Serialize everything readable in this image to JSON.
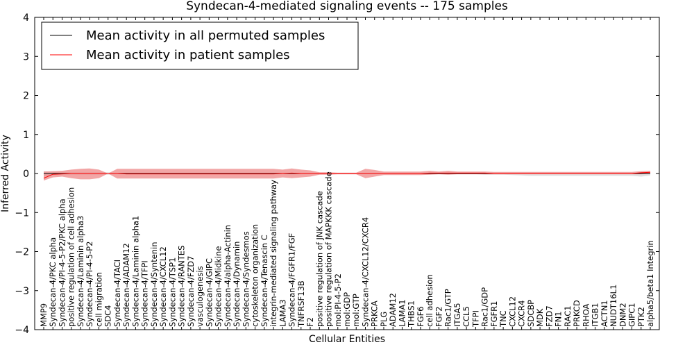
{
  "chart_data": {
    "type": "line",
    "title": "Syndecan-4-mediated signaling events -- 175 samples",
    "xlabel": "Cellular Entities",
    "ylabel": "Inferred Activity",
    "ylim": [
      -4,
      4
    ],
    "yticks": [
      -4,
      -3,
      -2,
      -1,
      0,
      1,
      2,
      3,
      4
    ],
    "ytick_labels": [
      "−4",
      "−3",
      "−2",
      "−1",
      "0",
      "1",
      "2",
      "3",
      "4"
    ],
    "legend_position": "top-left",
    "categories": [
      "MMP9",
      "Syndecan-4/PKC alpha",
      "Syndecan-4/PI-4-5-P2/PKC alpha",
      "positive regulation of cell adhesion",
      "Syndecan-4/Laminin alpha3",
      "Syndecan-4/PI-4-5-P2",
      "cell migration",
      "SDC4",
      "Syndecan-4/TACI",
      "Syndecan-4/ADAM12",
      "Syndecan-4/Laminin alpha1",
      "Syndecan-4/TFPI",
      "Syndecan-4/Syntenin",
      "Syndecan-4/CXCL12",
      "Syndecan-4/TSP1",
      "Syndecan-4/RANTES",
      "Syndecan-4/FZD7",
      "vasculogenesis",
      "Syndecan-4/GIPC",
      "Syndecan-4/Midkine",
      "Syndecan-4/alpha-Actinin",
      "Syndecan-4/Dynamin",
      "Syndecan-4/Syndesmos",
      "cytoskeleton organization",
      "Syndecan-4/Tenascin C",
      "integrin-mediated signaling pathway",
      "LAMA3",
      "Syndecan-4/FGFR1/FGF",
      "TNFRSF13B",
      "F2",
      "positive regulation of JNK cascade",
      "positive regulation of MAPKKK cascade",
      "mol:PI-4-5-P2",
      "mol:GDP",
      "mol:GTP",
      "Syndecan-4/CXCL12/CXCR4",
      "PRKCA",
      "PLG",
      "ADAM12",
      "LAMA1",
      "THBS1",
      "FGF6",
      "cell adhesion",
      "FGF2",
      "Rac1/GTP",
      "ITGA5",
      "CCL5",
      "TFPI",
      "Rac1/GDP",
      "FGFR1",
      "TNC",
      "CXCL12",
      "CXCR4",
      "SDCBP",
      "MDK",
      "FZD7",
      "FN1",
      "RAC1",
      "PRKCD",
      "RHOA",
      "ITGB1",
      "ACTN1",
      "NUDT16L1",
      "DNM2",
      "GIPC1",
      "PTK2",
      "alpha5/beta1 Integrin"
    ],
    "series": [
      {
        "name": "Mean activity in all permuted samples",
        "color": "#000000",
        "values": [
          0,
          0,
          0,
          0,
          0,
          0,
          0,
          0,
          0,
          0,
          0,
          0,
          0,
          0,
          0,
          0,
          0,
          0,
          0,
          0,
          0,
          0,
          0,
          0,
          0,
          0,
          0,
          0,
          0,
          0,
          0,
          0,
          0,
          0,
          0,
          0,
          0,
          0,
          0,
          0,
          0,
          0,
          0,
          0,
          0,
          0,
          0,
          0,
          0,
          0,
          0,
          0,
          0,
          0,
          0,
          0,
          0,
          0,
          0,
          0,
          0,
          0,
          0,
          0,
          0,
          0,
          0
        ],
        "band_lower": [
          -0.08,
          -0.05,
          -0.03,
          -0.03,
          -0.03,
          -0.03,
          -0.03,
          -0.03,
          -0.02,
          -0.02,
          -0.02,
          -0.02,
          -0.02,
          -0.02,
          -0.02,
          -0.02,
          -0.02,
          -0.02,
          -0.02,
          -0.02,
          -0.02,
          -0.02,
          -0.02,
          -0.02,
          -0.02,
          -0.02,
          -0.02,
          -0.02,
          -0.02,
          -0.02,
          -0.02,
          -0.02,
          -0.02,
          -0.02,
          -0.02,
          -0.02,
          -0.02,
          -0.02,
          -0.02,
          -0.02,
          -0.02,
          -0.02,
          -0.02,
          -0.02,
          -0.02,
          -0.02,
          -0.02,
          -0.02,
          -0.03,
          -0.03,
          -0.03,
          -0.04,
          -0.05,
          -0.06,
          -0.06,
          -0.06,
          -0.06,
          -0.06,
          -0.06,
          -0.06,
          -0.06,
          -0.06,
          -0.06,
          -0.06,
          -0.06,
          -0.08,
          -0.05
        ],
        "band_upper": [
          0.06,
          0.04,
          0.03,
          0.03,
          0.03,
          0.03,
          0.03,
          0.03,
          0.02,
          0.02,
          0.02,
          0.02,
          0.02,
          0.02,
          0.02,
          0.02,
          0.02,
          0.02,
          0.02,
          0.02,
          0.02,
          0.02,
          0.02,
          0.02,
          0.02,
          0.02,
          0.02,
          0.02,
          0.02,
          0.02,
          0.02,
          0.02,
          0.02,
          0.02,
          0.02,
          0.02,
          0.02,
          0.02,
          0.02,
          0.02,
          0.02,
          0.02,
          0.02,
          0.02,
          0.02,
          0.02,
          0.02,
          0.02,
          0.02,
          0.02,
          0.02,
          0.02,
          0.02,
          0.02,
          0.02,
          0.02,
          0.02,
          0.02,
          0.02,
          0.02,
          0.02,
          0.02,
          0.02,
          0.02,
          0.02,
          0.03,
          0.03
        ],
        "band_color": "#cccccc"
      },
      {
        "name": "Mean activity in patient samples",
        "color": "#ff0000",
        "values": [
          -0.12,
          -0.02,
          -0.01,
          0,
          0,
          0,
          0,
          0,
          0,
          -0.01,
          -0.01,
          -0.01,
          -0.01,
          -0.01,
          -0.01,
          -0.01,
          -0.01,
          -0.01,
          -0.01,
          -0.01,
          -0.01,
          -0.01,
          -0.01,
          -0.01,
          -0.01,
          -0.01,
          0,
          0.01,
          0,
          0,
          0,
          0,
          0,
          0,
          0,
          0,
          0,
          0,
          0,
          0,
          0,
          0,
          0.01,
          0.01,
          0.01,
          0.01,
          0.01,
          0.01,
          0.01,
          0,
          0,
          0,
          0,
          0,
          0,
          0,
          0,
          0,
          0,
          0,
          0,
          0,
          0,
          0,
          0,
          0.02,
          0.03
        ],
        "band_lower": [
          -0.18,
          -0.1,
          -0.08,
          -0.12,
          -0.15,
          -0.15,
          -0.12,
          0,
          -0.13,
          -0.13,
          -0.13,
          -0.13,
          -0.13,
          -0.13,
          -0.13,
          -0.13,
          -0.13,
          -0.13,
          -0.13,
          -0.13,
          -0.13,
          -0.13,
          -0.13,
          -0.13,
          -0.13,
          -0.13,
          -0.1,
          -0.12,
          -0.1,
          -0.08,
          -0.03,
          -0.03,
          -0.02,
          -0.02,
          -0.02,
          -0.12,
          -0.08,
          -0.04,
          -0.04,
          -0.04,
          -0.04,
          -0.04,
          -0.03,
          -0.02,
          -0.03,
          -0.02,
          -0.02,
          -0.02,
          -0.02,
          -0.02,
          -0.02,
          -0.02,
          -0.02,
          -0.02,
          -0.02,
          -0.02,
          -0.02,
          -0.02,
          -0.02,
          -0.02,
          -0.02,
          -0.02,
          -0.02,
          -0.02,
          -0.02,
          -0.02,
          -0.01
        ],
        "band_upper": [
          0.05,
          0.06,
          0.07,
          0.1,
          0.12,
          0.13,
          0.1,
          0,
          0.12,
          0.12,
          0.12,
          0.12,
          0.12,
          0.12,
          0.12,
          0.12,
          0.12,
          0.12,
          0.12,
          0.12,
          0.12,
          0.12,
          0.12,
          0.12,
          0.12,
          0.12,
          0.1,
          0.13,
          0.1,
          0.08,
          0.03,
          0.03,
          0.02,
          0.02,
          0.02,
          0.12,
          0.09,
          0.05,
          0.05,
          0.05,
          0.05,
          0.05,
          0.07,
          0.05,
          0.07,
          0.05,
          0.05,
          0.05,
          0.05,
          0.04,
          0.04,
          0.04,
          0.04,
          0.04,
          0.04,
          0.04,
          0.04,
          0.04,
          0.04,
          0.04,
          0.04,
          0.04,
          0.04,
          0.04,
          0.04,
          0.06,
          0.07
        ],
        "band_color": "#ee8888"
      }
    ]
  }
}
